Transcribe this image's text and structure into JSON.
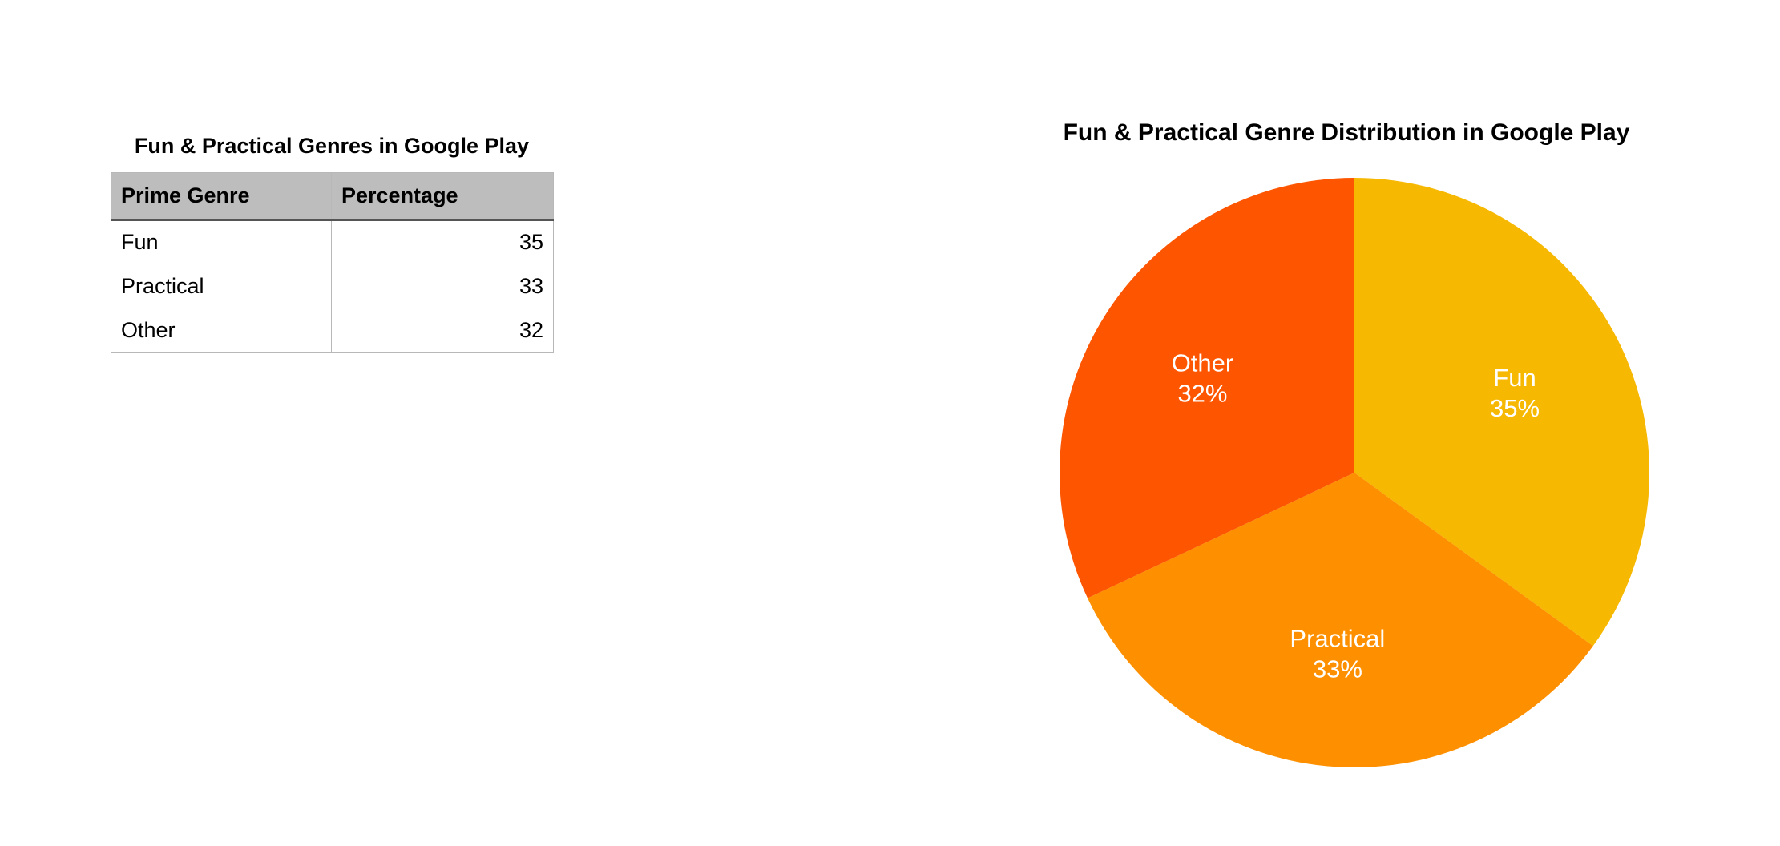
{
  "table": {
    "title": "Fun & Practical Genres in Google Play",
    "headers": [
      "Prime Genre",
      "Percentage"
    ],
    "rows": [
      {
        "genre": "Fun",
        "percentage": "35"
      },
      {
        "genre": "Practical",
        "percentage": "33"
      },
      {
        "genre": "Other",
        "percentage": "32"
      }
    ]
  },
  "chart_data": {
    "type": "pie",
    "title": "Fun & Practical Genre Distribution in Google Play",
    "start": "12 o'clock",
    "direction": "clockwise",
    "legend": "none",
    "slices": [
      {
        "label": "Fun",
        "value": 35,
        "display": "35%",
        "color": "#f6b800"
      },
      {
        "label": "Practical",
        "value": 33,
        "display": "33%",
        "color": "#fe9000"
      },
      {
        "label": "Other",
        "value": 32,
        "display": "32%",
        "color": "#fe5500"
      }
    ]
  }
}
